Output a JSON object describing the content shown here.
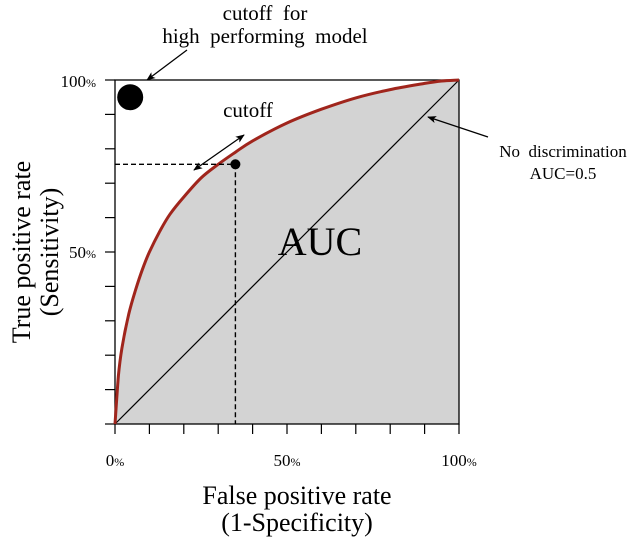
{
  "chart_data": {
    "type": "line",
    "title": "",
    "xlabel": [
      "False positive rate",
      "(1-Specificity)"
    ],
    "ylabel": [
      "True positive rate",
      "(Sensitivity)"
    ],
    "xlim": [
      0,
      100
    ],
    "ylim": [
      0,
      100
    ],
    "x_ticks_labeled": [
      {
        "value": 0,
        "num": "0",
        "unit": "%"
      },
      {
        "value": 50,
        "num": "50",
        "unit": "%"
      },
      {
        "value": 100,
        "num": "100",
        "unit": "%"
      }
    ],
    "y_ticks_labeled": [
      {
        "value": 50,
        "num": "50",
        "unit": "%"
      },
      {
        "value": 100,
        "num": "100",
        "unit": "%"
      }
    ],
    "x_minor_ticks": [
      10,
      20,
      30,
      40,
      60,
      70,
      80,
      90
    ],
    "y_minor_ticks": [
      10,
      20,
      30,
      40,
      60,
      70,
      80,
      90
    ],
    "series": [
      {
        "kind": "roc-curve",
        "color": "#a0251c",
        "x": [
          0,
          1,
          2,
          4,
          6,
          8,
          10,
          13,
          16,
          20,
          25,
          30,
          35,
          40,
          50,
          60,
          70,
          80,
          90,
          95,
          100
        ],
        "y": [
          0,
          14,
          22,
          32,
          39,
          45,
          50,
          56,
          61,
          66,
          71.5,
          75.5,
          79,
          82.3,
          87.5,
          91.5,
          94.8,
          97.2,
          99,
          99.7,
          100
        ]
      },
      {
        "kind": "diagonal",
        "color": "#000000",
        "x": [
          0,
          100
        ],
        "y": [
          0,
          100
        ]
      }
    ],
    "area_fill_color": "#d3d3d3",
    "cutoff_point": {
      "x": 35,
      "y": 75.5
    },
    "ideal_point": {
      "x": 5,
      "y": 95
    },
    "annotations": {
      "auc_label": "AUC",
      "cutoff_label": "cutoff",
      "ideal_label_line1": "cutoff  for",
      "ideal_label_line2": "high  performing  model",
      "no_disc_line1": "No  discrimination",
      "no_disc_line2": "AUC=0.5"
    }
  }
}
